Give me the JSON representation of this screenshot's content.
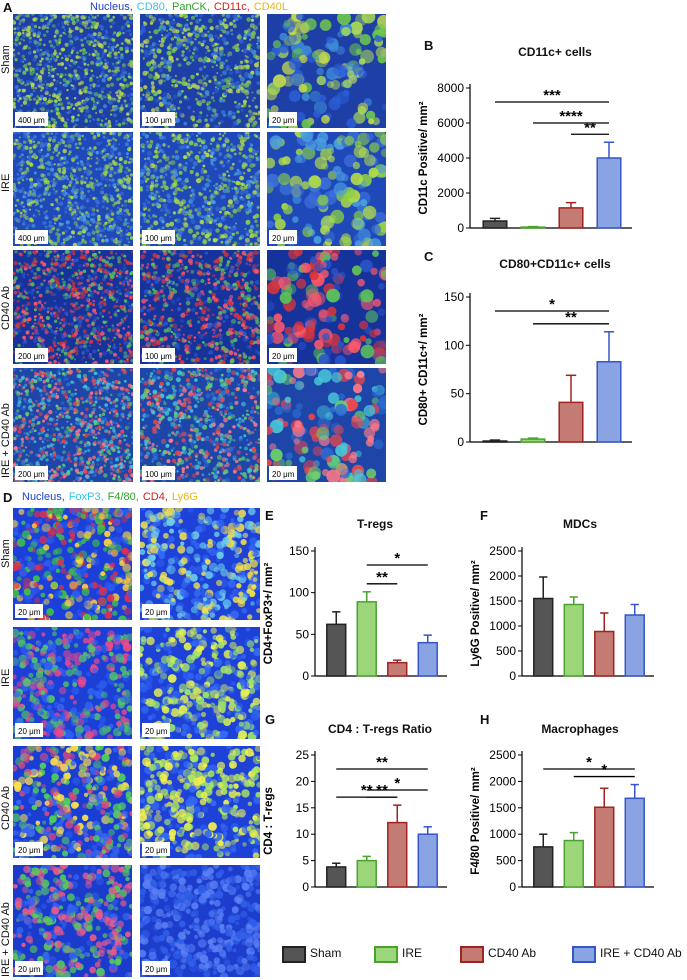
{
  "panelA": {
    "letter": "A",
    "legend": [
      {
        "text": "Nucleus,",
        "color": "#1f3fd0"
      },
      {
        "text": "CD80,",
        "color": "#2ec4e8"
      },
      {
        "text": "PanCK,",
        "color": "#2aa52a"
      },
      {
        "text": "CD11c,",
        "color": "#d21f1f"
      },
      {
        "text": "CD40L",
        "color": "#e8b51a"
      }
    ],
    "rows": [
      {
        "label": "Sham",
        "scales": [
          "400 μm",
          "100 μm",
          "20 μm"
        ]
      },
      {
        "label": "IRE",
        "scales": [
          "400 μm",
          "100 μm",
          "20 μm"
        ]
      },
      {
        "label": "CD40 Ab",
        "scales": [
          "200 μm",
          "100 μm",
          "20 μm"
        ]
      },
      {
        "label": "IRE + CD40 Ab",
        "scales": [
          "200 μm",
          "100 μm",
          "20 μm"
        ]
      }
    ]
  },
  "panelD": {
    "letter": "D",
    "legend": [
      {
        "text": "Nucleus,",
        "color": "#1f3fd0"
      },
      {
        "text": "FoxP3,",
        "color": "#2ec4e8"
      },
      {
        "text": "F4/80,",
        "color": "#2aa52a"
      },
      {
        "text": "CD4,",
        "color": "#d21f1f"
      },
      {
        "text": "Ly6G",
        "color": "#e8b51a"
      }
    ],
    "rows": [
      {
        "label": "Sham",
        "scales": [
          "20 μm",
          "20 μm"
        ]
      },
      {
        "label": "IRE",
        "scales": [
          "20 μm",
          "20 μm"
        ]
      },
      {
        "label": "CD40 Ab",
        "scales": [
          "20 μm",
          "20 μm"
        ]
      },
      {
        "label": "IRE + CD40 Ab",
        "scales": [
          "20 μm",
          "20 μm"
        ]
      }
    ]
  },
  "groups": [
    {
      "name": "Sham",
      "color": "#555555",
      "stroke": "#222222"
    },
    {
      "name": "IRE",
      "color": "#9bd77a",
      "stroke": "#49a22e"
    },
    {
      "name": "CD40 Ab",
      "color": "#c47b73",
      "stroke": "#a2221f"
    },
    {
      "name": "IRE + CD40 Ab",
      "color": "#8aa3e3",
      "stroke": "#3556c8"
    }
  ],
  "chart_data": [
    {
      "letter": "B",
      "type": "bar",
      "title": "CD11c+ cells",
      "ylabel": "CD11c Positive/ mm²",
      "categories": [
        "Sham",
        "IRE",
        "CD40 Ab",
        "IRE + CD40 Ab"
      ],
      "values": [
        400,
        50,
        1150,
        4000
      ],
      "errors": [
        150,
        30,
        300,
        900
      ],
      "ylim": [
        0,
        8000
      ],
      "ticks": [
        0,
        2000,
        4000,
        6000,
        8000
      ],
      "significance": [
        {
          "from": 0,
          "to": 3,
          "stars": "***"
        },
        {
          "from": 1,
          "to": 3,
          "stars": "****"
        },
        {
          "from": 2,
          "to": 3,
          "stars": "**"
        }
      ]
    },
    {
      "letter": "C",
      "type": "bar",
      "title": "CD80+CD11c+ cells",
      "ylabel": "CD80+ CD11c+/ mm²",
      "categories": [
        "Sham",
        "IRE",
        "CD40 Ab",
        "IRE + CD40 Ab"
      ],
      "values": [
        1,
        3,
        41,
        83
      ],
      "errors": [
        1,
        1,
        28,
        31
      ],
      "ylim": [
        0,
        150
      ],
      "ticks": [
        0,
        50,
        100,
        150
      ],
      "significance": [
        {
          "from": 0,
          "to": 3,
          "stars": "*"
        },
        {
          "from": 1,
          "to": 3,
          "stars": "**"
        }
      ]
    },
    {
      "letter": "E",
      "type": "bar",
      "title": "T-regs",
      "ylabel": "CD4+FoxP3+/ mm²",
      "categories": [
        "Sham",
        "IRE",
        "CD40 Ab",
        "IRE + CD40 Ab"
      ],
      "values": [
        62,
        89,
        16,
        40
      ],
      "errors": [
        15,
        12,
        3,
        9
      ],
      "ylim": [
        0,
        150
      ],
      "ticks": [
        0,
        50,
        100,
        150
      ],
      "significance": [
        {
          "from": 1,
          "to": 3,
          "stars": "*"
        },
        {
          "from": 1,
          "to": 2,
          "stars": "**"
        }
      ]
    },
    {
      "letter": "F",
      "type": "bar",
      "title": "MDCs",
      "ylabel": "Ly6G Positive/ mm²",
      "categories": [
        "Sham",
        "IRE",
        "CD40 Ab",
        "IRE + CD40 Ab"
      ],
      "values": [
        1550,
        1430,
        890,
        1220
      ],
      "errors": [
        430,
        150,
        370,
        210
      ],
      "ylim": [
        0,
        2500
      ],
      "ticks": [
        0,
        500,
        1000,
        1500,
        2000,
        2500
      ],
      "significance": []
    },
    {
      "letter": "G",
      "type": "bar",
      "title": "CD4 : T-regs Ratio",
      "ylabel": "CD4 : T-regs",
      "categories": [
        "Sham",
        "IRE",
        "CD40 Ab",
        "IRE + CD40 Ab"
      ],
      "values": [
        3.8,
        5.0,
        12.2,
        10.0
      ],
      "errors": [
        0.7,
        0.8,
        3.3,
        1.4
      ],
      "ylim": [
        0,
        25
      ],
      "ticks": [
        0,
        5,
        10,
        15,
        20,
        25
      ],
      "significance": [
        {
          "from": 0,
          "to": 3,
          "stars": "**"
        },
        {
          "from": 1,
          "to": 3,
          "stars": "*"
        },
        {
          "from": 0,
          "to": 2,
          "stars": "**"
        },
        {
          "from": 1,
          "to": 2,
          "stars": "**"
        }
      ]
    },
    {
      "letter": "H",
      "type": "bar",
      "title": "Macrophages",
      "ylabel": "F4/80 Positive/ mm²",
      "categories": [
        "Sham",
        "IRE",
        "CD40 Ab",
        "IRE + CD40 Ab"
      ],
      "values": [
        760,
        880,
        1510,
        1680
      ],
      "errors": [
        240,
        150,
        360,
        260
      ],
      "ylim": [
        0,
        2500
      ],
      "ticks": [
        0,
        500,
        1000,
        1500,
        2000,
        2500
      ],
      "significance": [
        {
          "from": 0,
          "to": 3,
          "stars": "*"
        },
        {
          "from": 1,
          "to": 3,
          "stars": "*"
        }
      ]
    }
  ]
}
